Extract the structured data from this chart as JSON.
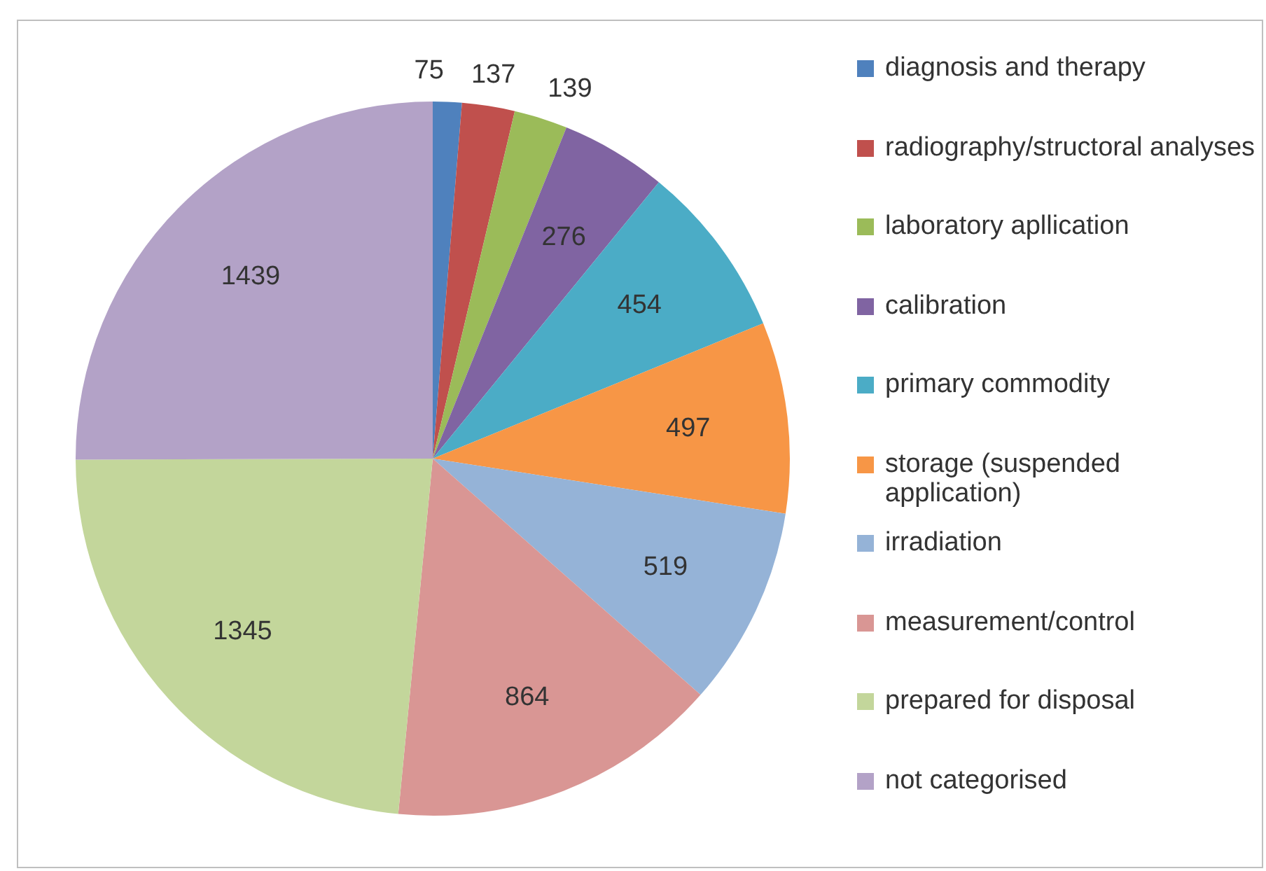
{
  "chart_data": {
    "type": "pie",
    "categories": [
      "diagnosis and therapy",
      "radiography/structoral analyses",
      "laboratory apllication",
      "calibration",
      "primary commodity",
      "storage (suspended application)",
      "irradiation",
      "measurement/control",
      "prepared for disposal",
      "not categorised"
    ],
    "values": [
      75,
      137,
      139,
      276,
      454,
      497,
      519,
      864,
      1345,
      1439
    ],
    "colors": [
      "#4f81bd",
      "#c0504d",
      "#9bbb59",
      "#8064a2",
      "#4bacc6",
      "#f79646",
      "#95b3d7",
      "#d99694",
      "#c3d69b",
      "#b3a2c7"
    ],
    "data_labels": true,
    "legend": "right"
  }
}
